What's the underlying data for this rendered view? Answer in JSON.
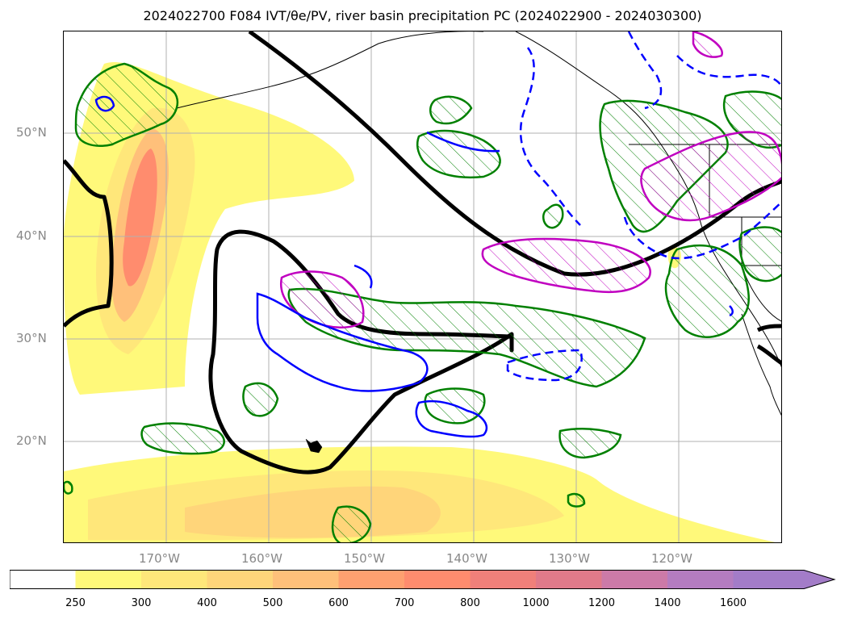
{
  "title": "2024022700 F084 IVT/θe/PV, river basin precipitation PC (2024022900 - 2024030300)",
  "latitude_labels": [
    "50°N",
    "40°N",
    "30°N",
    "20°N"
  ],
  "longitude_labels": [
    "170°W",
    "160°W",
    "150°W",
    "140°W",
    "130°W",
    "120°W"
  ],
  "colorbar": {
    "levels": [
      "250",
      "300",
      "400",
      "500",
      "600",
      "700",
      "800",
      "1000",
      "1200",
      "1400",
      "1600"
    ],
    "colors": [
      "#ffffff",
      "#fff97a",
      "#ffe77a",
      "#ffd57a",
      "#ffc07a",
      "#ffa070",
      "#ff8c6e",
      "#f0807a",
      "#e07a8a",
      "#cc7aa8",
      "#b47cc0",
      "#a37cc8"
    ],
    "extend": "max"
  },
  "map_style": {
    "ivt_fill": "yellow-orange-red-purple",
    "pv_contour_color": "#000000",
    "precip_contour_color": "#008000",
    "theta_contour_solid": "#0000ff",
    "theta_contour_dashed": "#0000ff",
    "magenta_contour": "#c000c0",
    "gridlines": true
  }
}
